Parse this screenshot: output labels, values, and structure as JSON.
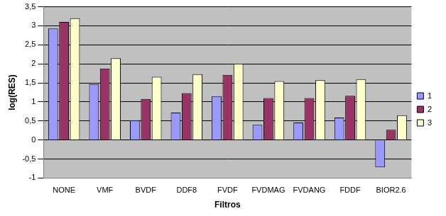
{
  "chart_data": {
    "type": "bar",
    "x_label": "Filtros",
    "y_label": "log(RES)",
    "categories": [
      "NONE",
      "VMF",
      "BVDF",
      "DDF8",
      "FVDF",
      "FVDMAG",
      "FVDANG",
      "FDDF",
      "BIOR2.6"
    ],
    "series": [
      {
        "name": "1",
        "color": "#9999ff",
        "values": [
          2.93,
          1.47,
          0.52,
          0.72,
          1.15,
          0.4,
          0.46,
          0.59,
          -0.72
        ]
      },
      {
        "name": "2",
        "color": "#993366",
        "values": [
          3.1,
          1.88,
          1.08,
          1.23,
          1.71,
          1.1,
          1.1,
          1.16,
          0.27
        ]
      },
      {
        "name": "3",
        "color": "#ffffcc",
        "values": [
          3.2,
          2.15,
          1.66,
          1.73,
          2.01,
          1.55,
          1.57,
          1.6,
          0.65
        ]
      }
    ],
    "ylim": [
      -1,
      3.5
    ],
    "yticks": [
      -1,
      {
        "value": -0.5,
        "label": "-0,5"
      },
      0,
      {
        "value": 0.5,
        "label": "0,5"
      },
      1,
      {
        "value": 1.5,
        "label": "1,5"
      },
      2,
      {
        "value": 2.5,
        "label": "2,5"
      },
      3,
      {
        "value": 3.5,
        "label": "3,5"
      }
    ],
    "grid": true,
    "legend": "right"
  }
}
